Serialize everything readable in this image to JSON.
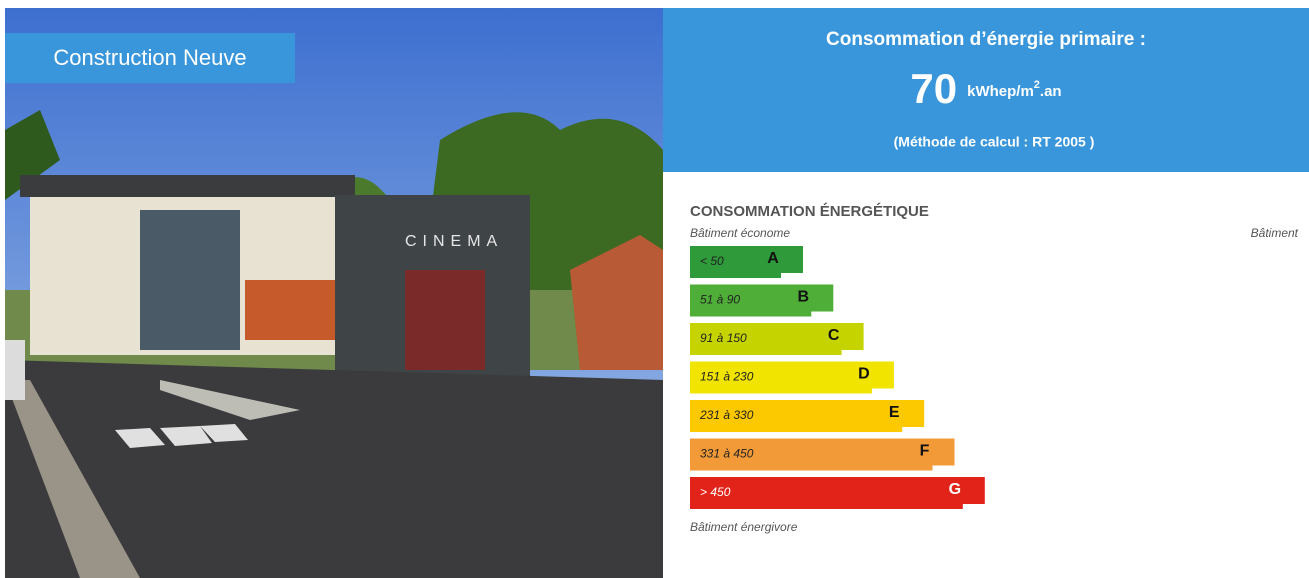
{
  "photo": {
    "badge": "Construction Neuve"
  },
  "header": {
    "title": "Consommation d’énergie primaire :",
    "value": "70",
    "unit": "kWhep/m",
    "unit_sup": "2",
    "unit_end": ".an",
    "method": "(Méthode de calcul : RT 2005 )"
  },
  "label": {
    "title": "CONSOMMATION ÉNERGÉTIQUE",
    "top_left": "Bâtiment économe",
    "top_right": "Bâtiment",
    "bottom": "Bâtiment énergivore",
    "classes": [
      {
        "range": "< 50",
        "letter": "A",
        "color": "#2e9a3a"
      },
      {
        "range": "51 à 90",
        "letter": "B",
        "color": "#4fae38"
      },
      {
        "range": "91 à 150",
        "letter": "C",
        "color": "#c5d400"
      },
      {
        "range": "151 à 230",
        "letter": "D",
        "color": "#f0e400"
      },
      {
        "range": "231 à 330",
        "letter": "E",
        "color": "#fcc800"
      },
      {
        "range": "331 à 450",
        "letter": "F",
        "color": "#f29a38"
      },
      {
        "range": "> 450",
        "letter": "G",
        "color": "#e2231a"
      }
    ]
  }
}
